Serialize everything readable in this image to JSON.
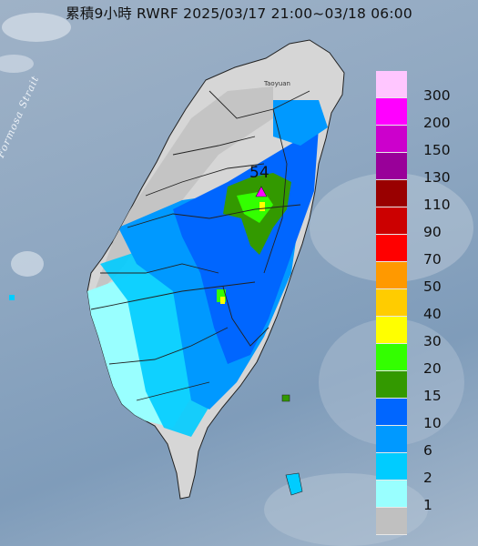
{
  "title": "累積9小時 RWRF 2025/03/17 21:00~03/18 06:00",
  "strait_label": "Formosa Strait",
  "city_label": "Taoyuan",
  "max_marker": {
    "value": "54",
    "color": "#ff00ff"
  },
  "legend": [
    {
      "label": "300",
      "color": "#ffc6ff"
    },
    {
      "label": "200",
      "color": "#ff00ff"
    },
    {
      "label": "150",
      "color": "#cc00cc"
    },
    {
      "label": "130",
      "color": "#990099"
    },
    {
      "label": "110",
      "color": "#990000"
    },
    {
      "label": "90",
      "color": "#cc0000"
    },
    {
      "label": "70",
      "color": "#ff0000"
    },
    {
      "label": "50",
      "color": "#ff9900"
    },
    {
      "label": "40",
      "color": "#ffcc00"
    },
    {
      "label": "30",
      "color": "#ffff00"
    },
    {
      "label": "20",
      "color": "#33ff00"
    },
    {
      "label": "15",
      "color": "#339900"
    },
    {
      "label": "10",
      "color": "#0066ff"
    },
    {
      "label": "6",
      "color": "#0099ff"
    },
    {
      "label": "2",
      "color": "#00ccff"
    },
    {
      "label": "1",
      "color": "#99ffff"
    },
    {
      "label": "",
      "color": "#c0c0c0"
    }
  ],
  "colors": {
    "sea": "#8ea7c1",
    "land": "#d6d6d6",
    "cloud": "#eef2f6"
  }
}
